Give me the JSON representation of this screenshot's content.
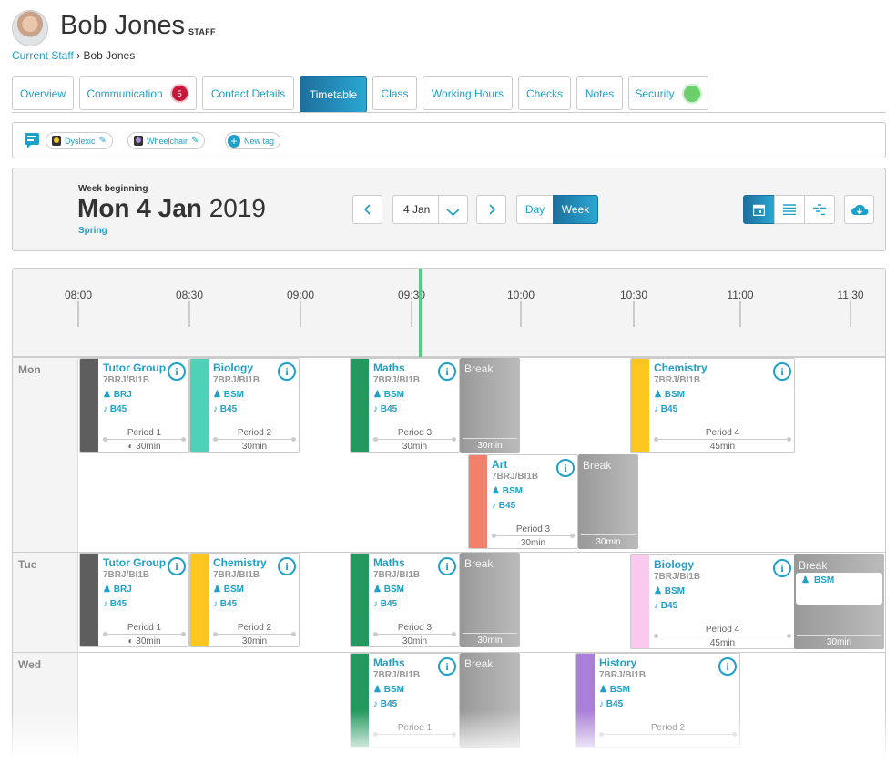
{
  "header": {
    "name": "Bob Jones",
    "role": "STAFF"
  },
  "breadcrumb": {
    "parent": "Current Staff",
    "sep": "›",
    "current": "Bob Jones"
  },
  "tabs": [
    {
      "label": "Overview"
    },
    {
      "label": "Communication",
      "badge": "5"
    },
    {
      "label": "Contact Details"
    },
    {
      "label": "Timetable",
      "active": true
    },
    {
      "label": "Class"
    },
    {
      "label": "Working Hours"
    },
    {
      "label": "Checks"
    },
    {
      "label": "Notes"
    },
    {
      "label": "Security",
      "status_color": "#6ccf6c"
    }
  ],
  "tags": {
    "items": [
      {
        "label": "Dyslexic",
        "color": "#f3c623"
      },
      {
        "label": "Wheelchair",
        "color": "#a88bd6"
      }
    ],
    "new_tag": "New tag"
  },
  "week": {
    "label": "Week beginning",
    "date_bold": "Mon 4 Jan",
    "year": "2019",
    "term": "Spring",
    "selected": "4 Jan",
    "day_btn": "Day",
    "week_btn": "Week"
  },
  "timeline": {
    "ticks": [
      "08:00",
      "08:30",
      "09:00",
      "09:30",
      "10:00",
      "10:30",
      "11:00",
      "11:30"
    ]
  },
  "days": [
    {
      "name": "Mon",
      "lessons": [
        {
          "subject": "Tutor Group",
          "class": "7BRJ/BI1B",
          "staff": "BRJ",
          "room": "B45",
          "period": "Period 1",
          "duration": "30min",
          "color": "#5e5e5e"
        },
        {
          "subject": "Biology",
          "class": "7BRJ/BI1B",
          "staff": "BSM",
          "room": "B45",
          "period": "Period 2",
          "duration": "30min",
          "color": "#4fd1b7"
        },
        {
          "subject": "Maths",
          "class": "7BRJ/BI1B",
          "staff": "BSM",
          "room": "B45",
          "period": "Period 3",
          "duration": "30min",
          "color": "#24995f"
        },
        {
          "subject": "Break",
          "duration": "30min",
          "type": "break"
        },
        {
          "subject": "Chemistry",
          "class": "7BRJ/BI1B",
          "staff": "BSM",
          "room": "B45",
          "period": "Period 4",
          "duration": "45min",
          "color": "#fcc61f"
        },
        {
          "subject": "Art",
          "class": "7BRJ/BI1B",
          "staff": "BSM",
          "room": "B45",
          "period": "Period 3",
          "duration": "30min",
          "color": "#f2806a"
        },
        {
          "subject": "Break",
          "duration": "30min",
          "type": "break"
        }
      ]
    },
    {
      "name": "Tue",
      "lessons": [
        {
          "subject": "Tutor Group",
          "class": "7BRJ/BI1B",
          "staff": "BRJ",
          "room": "B45",
          "period": "Period 1",
          "duration": "30min",
          "color": "#5e5e5e"
        },
        {
          "subject": "Chemistry",
          "class": "7BRJ/BI1B",
          "staff": "BSM",
          "room": "B45",
          "period": "Period 2",
          "duration": "30min",
          "color": "#fcc61f"
        },
        {
          "subject": "Maths",
          "class": "7BRJ/BI1B",
          "staff": "BSM",
          "room": "B45",
          "period": "Period 3",
          "duration": "30min",
          "color": "#24995f"
        },
        {
          "subject": "Break",
          "duration": "30min",
          "type": "break"
        },
        {
          "subject": "Biology",
          "class": "7BRJ/BI1B",
          "staff": "BSM",
          "room": "B45",
          "period": "Period 4",
          "duration": "45min",
          "color": "#f9c9ef"
        },
        {
          "subject": "Break",
          "staff": "BSM",
          "duration": "30min",
          "type": "break"
        }
      ]
    },
    {
      "name": "Wed",
      "lessons": [
        {
          "subject": "Maths",
          "class": "7BRJ/BI1B",
          "staff": "BSM",
          "room": "B45",
          "period": "Period 1",
          "color": "#24995f"
        },
        {
          "subject": "Break",
          "type": "break"
        },
        {
          "subject": "History",
          "class": "7BRJ/BI1B",
          "staff": "BSM",
          "room": "B45",
          "period": "Period 2",
          "color": "#a97fd8"
        }
      ]
    }
  ],
  "icons": [
    "chat-icon",
    "pencil-icon",
    "plus-icon",
    "chevron-left-icon",
    "chevron-down-icon",
    "chevron-right-icon",
    "calendar-icon",
    "list-icon",
    "gantt-icon",
    "cloud-download-icon",
    "info-icon",
    "teacher-icon",
    "room-icon",
    "half-clock-icon"
  ]
}
